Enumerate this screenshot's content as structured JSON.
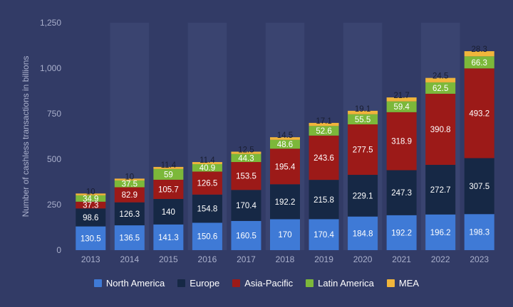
{
  "chart_data": {
    "type": "bar",
    "stacked": true,
    "categories": [
      "2013",
      "2014",
      "2015",
      "2016",
      "2017",
      "2018",
      "2019",
      "2020",
      "2021",
      "2022",
      "2023"
    ],
    "series": [
      {
        "name": "North America",
        "color": "#3f7ad6",
        "values": [
          130.5,
          136.5,
          141.3,
          150.6,
          160.5,
          170,
          170.4,
          184.8,
          192.2,
          196.2,
          198.3
        ],
        "labels": [
          "130.5",
          "136.5",
          "141.3",
          "150.6",
          "160.5",
          "170",
          "170.4",
          "184.8",
          "192.2",
          "196.2",
          "198.3"
        ]
      },
      {
        "name": "Europe",
        "color": "#162845",
        "values": [
          98.6,
          126.3,
          140,
          154.8,
          170.4,
          192.2,
          215.8,
          229.1,
          247.3,
          272.7,
          307.5
        ],
        "labels": [
          "98.6",
          "126.3",
          "140",
          "154.8",
          "170.4",
          "192.2",
          "215.8",
          "229.1",
          "247.3",
          "272.7",
          "307.5"
        ]
      },
      {
        "name": "Asia-Pacific",
        "color": "#9c1a18",
        "values": [
          37.3,
          82.9,
          105.7,
          126.5,
          153.5,
          195.4,
          243.6,
          277.5,
          318.9,
          390.8,
          493.2
        ],
        "labels": [
          "37.3",
          "82.9",
          "105.7",
          "126.5",
          "153.5",
          "195.4",
          "243.6",
          "277.5",
          "318.9",
          "390.8",
          "493.2"
        ]
      },
      {
        "name": "Latin America",
        "color": "#7cb83a",
        "values": [
          34.9,
          37.5,
          59,
          40.9,
          44.3,
          48.6,
          52.6,
          55.5,
          59.4,
          62.5,
          66.3
        ],
        "labels": [
          "34.9",
          "37.5",
          "59",
          "40.9",
          "44.3",
          "48.6",
          "52.6",
          "55.5",
          "59.4",
          "62.5",
          "66.3"
        ]
      },
      {
        "name": "MEA",
        "color": "#f0b53b",
        "values": [
          10,
          10,
          11.4,
          11.4,
          12.5,
          14.5,
          17.1,
          19.1,
          21.7,
          24.5,
          28.3
        ],
        "labels": [
          "10",
          "10",
          "11.4",
          "11.4",
          "12.5",
          "14.5",
          "17.1",
          "19.1",
          "21.7",
          "24.5",
          "28.3"
        ]
      }
    ],
    "ylabel": "Number of cashless transactions in billions",
    "xlabel": "",
    "ylim": [
      0,
      1250
    ],
    "yticks": [
      "0",
      "250",
      "500",
      "750",
      "1,000",
      "1,250"
    ],
    "ytick_values": [
      0,
      250,
      500,
      750,
      1000,
      1250
    ],
    "legend_position": "bottom-center"
  }
}
